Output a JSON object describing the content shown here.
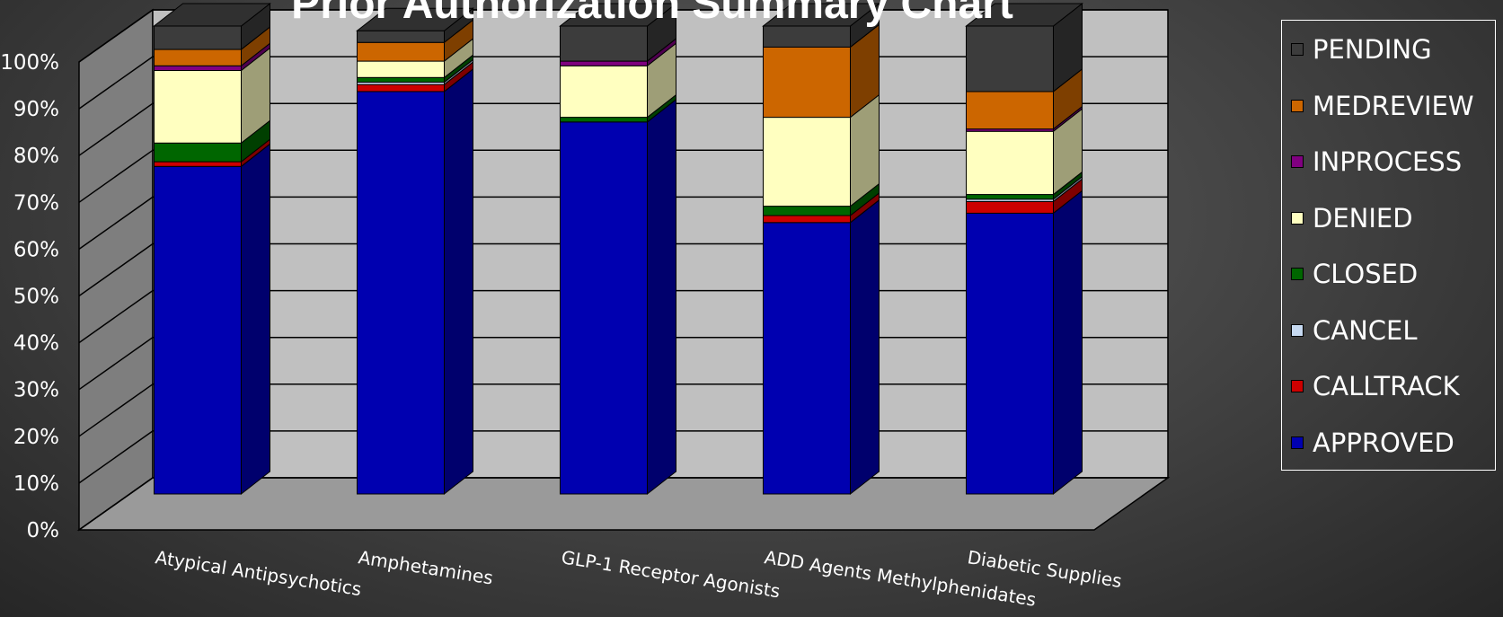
{
  "chart_data": {
    "type": "bar",
    "stacked": true,
    "stacked_percent": true,
    "three_d": true,
    "title": "Prior Authorization Summary Chart",
    "categories": [
      "Atypical Antipsychotics",
      "Amphetamines",
      "GLP-1 Receptor Agonists",
      "ADD Agents Methylphenidates",
      "Diabetic Supplies"
    ],
    "ylim": [
      0,
      100
    ],
    "yticks": [
      "0%",
      "10%",
      "20%",
      "30%",
      "40%",
      "50%",
      "60%",
      "70%",
      "80%",
      "90%",
      "100%"
    ],
    "grid": true,
    "legend_position": "right",
    "series": [
      {
        "name": "APPROVED",
        "color": "#0000b0",
        "values": [
          70.0,
          86.0,
          79.5,
          58.0,
          60.0
        ]
      },
      {
        "name": "CALLTRACK",
        "color": "#cc0000",
        "values": [
          1.0,
          1.5,
          0.0,
          1.5,
          2.5
        ]
      },
      {
        "name": "CANCEL",
        "color": "#c6d9f1",
        "values": [
          0.0,
          0.5,
          0.0,
          0.0,
          0.5
        ]
      },
      {
        "name": "CLOSED",
        "color": "#006600",
        "values": [
          4.0,
          1.0,
          1.0,
          2.0,
          1.0
        ]
      },
      {
        "name": "DENIED",
        "color": "#ffffc0",
        "values": [
          15.5,
          3.5,
          11.0,
          19.0,
          13.5
        ]
      },
      {
        "name": "INPROCESS",
        "color": "#800080",
        "values": [
          1.0,
          0.0,
          1.0,
          0.0,
          0.5
        ]
      },
      {
        "name": "MEDREVIEW",
        "color": "#cc6600",
        "values": [
          3.5,
          4.0,
          0.0,
          15.0,
          8.0
        ]
      },
      {
        "name": "PENDING",
        "color": "#3c3c3c",
        "values": [
          5.0,
          2.5,
          7.5,
          4.5,
          14.0
        ]
      }
    ]
  },
  "legend": {
    "items": [
      {
        "label": "PENDING",
        "color": "#3c3c3c"
      },
      {
        "label": "MEDREVIEW",
        "color": "#cc6600"
      },
      {
        "label": "INPROCESS",
        "color": "#800080"
      },
      {
        "label": "DENIED",
        "color": "#ffffc0"
      },
      {
        "label": "CLOSED",
        "color": "#006600"
      },
      {
        "label": "CANCEL",
        "color": "#c6d9f1"
      },
      {
        "label": "CALLTRACK",
        "color": "#cc0000"
      },
      {
        "label": "APPROVED",
        "color": "#0000b0"
      }
    ]
  }
}
